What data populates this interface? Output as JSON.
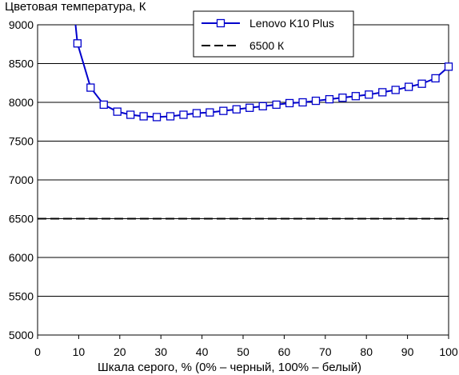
{
  "chart_data": {
    "type": "line",
    "title": "Цветовая температура, К",
    "xlabel": "Шкала серого, % (0% – черный, 100% – белый)",
    "ylabel": "",
    "xlim": [
      0,
      100
    ],
    "ylim": [
      5000,
      9000
    ],
    "x_ticks": [
      0,
      10,
      20,
      30,
      40,
      50,
      60,
      70,
      80,
      90,
      100
    ],
    "y_ticks": [
      5000,
      5500,
      6000,
      6500,
      7000,
      7500,
      8000,
      8500,
      9000
    ],
    "grid": "horizontal",
    "legend_position": "top-center",
    "series": [
      {
        "name": "Lenovo K10 Plus",
        "color": "#0000cc",
        "style": "solid",
        "marker": "square",
        "x": [
          9.7,
          12.9,
          16.1,
          19.4,
          22.6,
          25.8,
          29.0,
          32.3,
          35.5,
          38.7,
          41.9,
          45.2,
          48.4,
          51.6,
          54.8,
          58.1,
          61.3,
          64.5,
          67.7,
          71.0,
          74.2,
          77.4,
          80.6,
          83.9,
          87.1,
          90.3,
          93.5,
          96.8,
          100.0
        ],
        "y": [
          8760,
          8190,
          7970,
          7880,
          7840,
          7820,
          7810,
          7820,
          7840,
          7860,
          7870,
          7890,
          7910,
          7930,
          7950,
          7970,
          7990,
          8000,
          8020,
          8040,
          8060,
          8080,
          8100,
          8130,
          8160,
          8200,
          8240,
          8310,
          8460
        ]
      },
      {
        "name": "6500 К",
        "color": "#000000",
        "style": "dashed",
        "x": [
          0,
          100
        ],
        "y": [
          6500,
          6500
        ]
      }
    ]
  }
}
